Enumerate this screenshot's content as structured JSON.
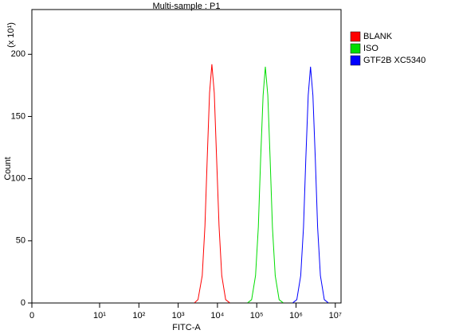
{
  "chart_data": {
    "type": "line",
    "title": "Multi-sample : P1",
    "x_label": "FITC-A",
    "y_label": "Count",
    "y_scale_label": "(x 10¹)",
    "x_scale": "biexponential",
    "xlim": [
      0,
      14000000
    ],
    "ylim": [
      0,
      236
    ],
    "xticks": [
      0,
      {
        "value": 10,
        "label": "10¹"
      },
      {
        "value": 100,
        "label": "10²"
      },
      {
        "value": 1000,
        "label": "10³"
      },
      {
        "value": 10000,
        "label": "10⁴"
      },
      {
        "value": 100000,
        "label": "10⁵"
      },
      {
        "value": 1000000,
        "label": "10⁶"
      },
      {
        "value": 10000000,
        "label": "10⁷"
      }
    ],
    "yticks": [
      0,
      50,
      100,
      150,
      200
    ],
    "legend": "top-right",
    "series": [
      {
        "name": "BLANK",
        "color": "#ff0000",
        "x": [
          2600,
          3200,
          4100,
          4800,
          5500,
          6300,
          7200,
          8300,
          9500,
          11000,
          12900,
          16200,
          20400
        ],
        "values": [
          0.2,
          2.7,
          22,
          62,
          117,
          169,
          192,
          169,
          117,
          62,
          22,
          2.7,
          0.2
        ]
      },
      {
        "name": "ISO",
        "color": "#00dd00",
        "x": [
          58900,
          74100,
          93300,
          110000,
          126000,
          145000,
          166000,
          191000,
          219000,
          251000,
          295000,
          372000,
          468000
        ],
        "values": [
          0.2,
          2.7,
          22,
          61,
          116,
          167,
          190,
          167,
          116,
          61,
          22,
          2.7,
          0.2
        ]
      },
      {
        "name": "GTF2B XC5340",
        "color": "#0000ff",
        "x": [
          832000,
          1050000,
          1320000,
          1550000,
          1780000,
          2040000,
          2340000,
          2690000,
          3090000,
          3550000,
          4170000,
          5250000,
          6610000
        ],
        "values": [
          0.2,
          2.7,
          22,
          61,
          116,
          167,
          190,
          167,
          116,
          61,
          22,
          2.7,
          0.2
        ]
      }
    ]
  }
}
